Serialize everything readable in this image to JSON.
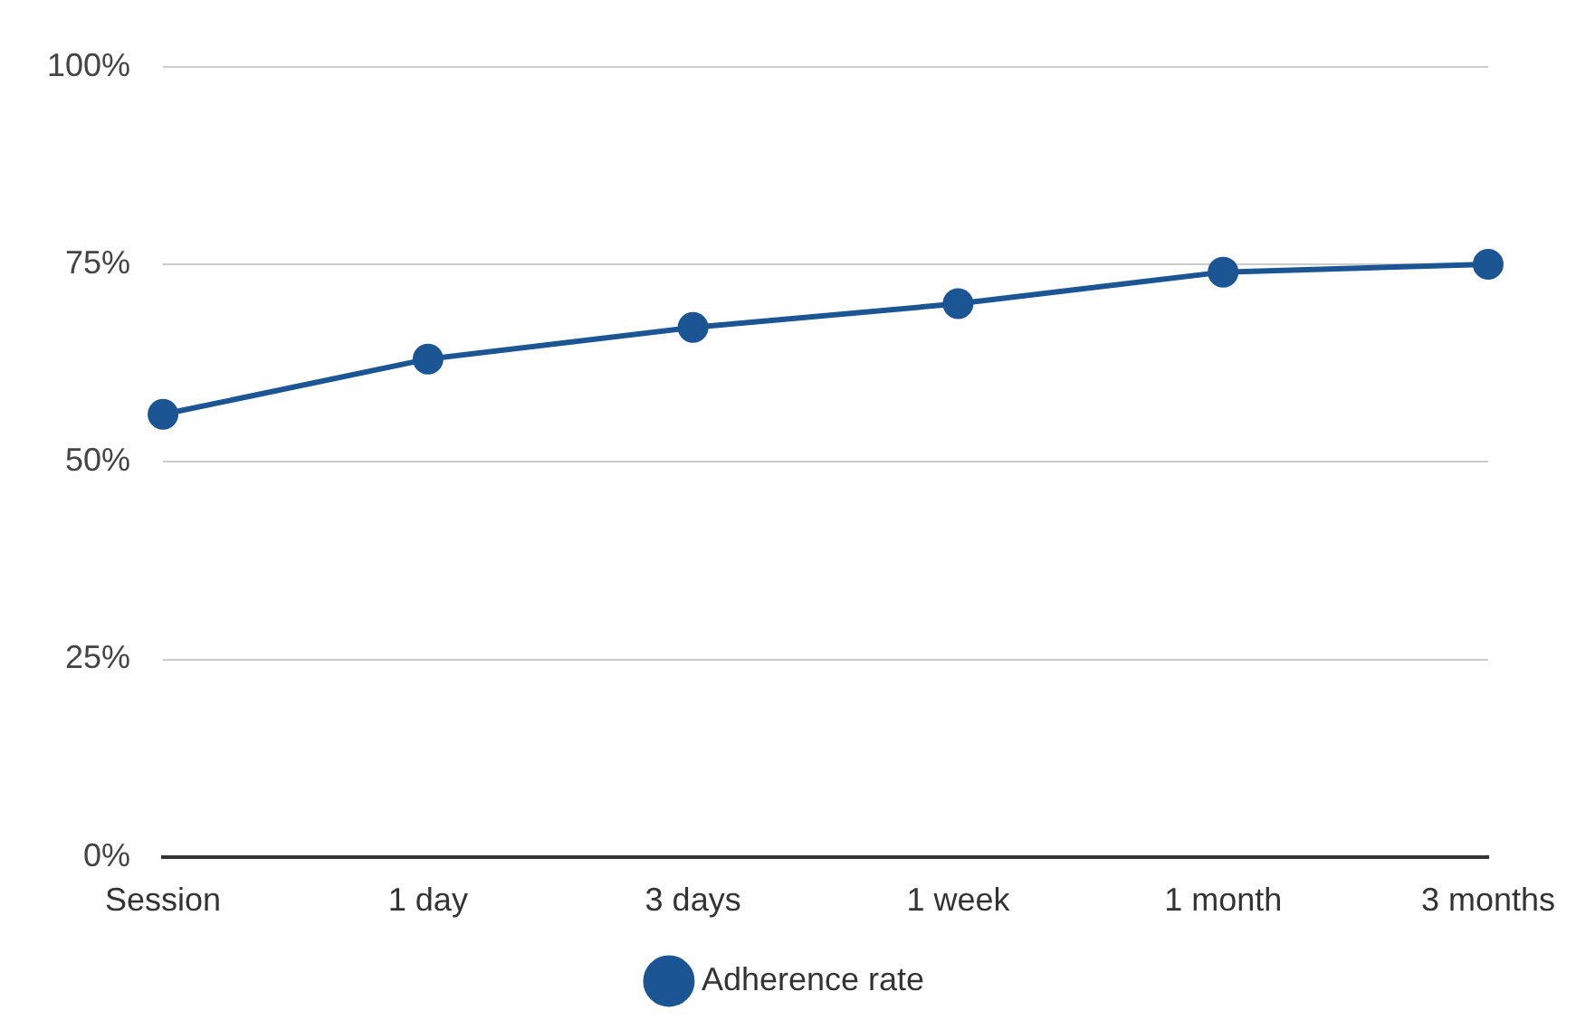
{
  "chart_data": {
    "type": "line",
    "categories": [
      "Session",
      "1 day",
      "3 days",
      "1 week",
      "1 month",
      "3 months"
    ],
    "series": [
      {
        "name": "Adherence rate",
        "color": "#1c5594",
        "values": [
          56,
          63,
          67,
          70,
          74,
          75
        ]
      }
    ],
    "ylim": [
      0,
      100
    ],
    "yticks": [
      {
        "value": 0,
        "label": "0%"
      },
      {
        "value": 25,
        "label": "25%"
      },
      {
        "value": 50,
        "label": "50%"
      },
      {
        "value": 75,
        "label": "75%"
      },
      {
        "value": 100,
        "label": "100%"
      }
    ],
    "grid": "y",
    "legend": "bottom",
    "marker": "circle",
    "line_style": "solid"
  }
}
